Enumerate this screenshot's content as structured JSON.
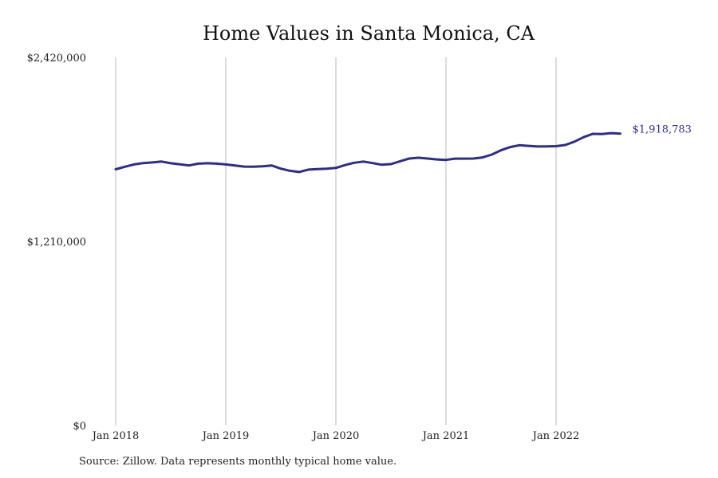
{
  "header": {
    "title": "Home Values in Santa Monica, CA"
  },
  "footer": {
    "source": "Source: Zillow. Data represents monthly typical home value."
  },
  "colors": {
    "line": "#2e2d8c",
    "gridline": "#b8b8b8",
    "text": "#222222",
    "last_label": "#2e2d8c"
  },
  "chart_data": {
    "type": "line",
    "title": "Home Values in Santa Monica, CA",
    "xlabel": "",
    "ylabel": "",
    "grid": "vertical gridlines at each January",
    "legend": "none",
    "x_ticks": [
      "Jan 2018",
      "Jan 2019",
      "Jan 2020",
      "Jan 2021",
      "Jan 2022"
    ],
    "y_ticks": [
      "$0",
      "$1,210,000",
      "$2,420,000"
    ],
    "y_tick_values": [
      0,
      1210000,
      2420000
    ],
    "ylim": [
      0,
      2420000
    ],
    "xlim": [
      "2018-01",
      "2022-12"
    ],
    "last_value_label": "$1,918,783",
    "series": [
      {
        "x": [
          "2018-01",
          "2018-02",
          "2018-03",
          "2018-04",
          "2018-05",
          "2018-06",
          "2018-07",
          "2018-08",
          "2018-09",
          "2018-10",
          "2018-11",
          "2018-12",
          "2019-01",
          "2019-02",
          "2019-03",
          "2019-04",
          "2019-05",
          "2019-06",
          "2019-07",
          "2019-08",
          "2019-09",
          "2019-10",
          "2019-11",
          "2019-12",
          "2020-01",
          "2020-02",
          "2020-03",
          "2020-04",
          "2020-05",
          "2020-06",
          "2020-07",
          "2020-08",
          "2020-09",
          "2020-10",
          "2020-11",
          "2020-12",
          "2021-01",
          "2021-02",
          "2021-03",
          "2021-04",
          "2021-05",
          "2021-06",
          "2021-07",
          "2021-08",
          "2021-09",
          "2021-10",
          "2021-11",
          "2021-12",
          "2022-01",
          "2022-02",
          "2022-03",
          "2022-04",
          "2022-05",
          "2022-06",
          "2022-07",
          "2022-08"
        ],
        "values": [
          1684000,
          1701000,
          1716000,
          1725000,
          1729000,
          1735000,
          1724000,
          1717000,
          1709000,
          1721000,
          1724000,
          1721000,
          1716000,
          1709000,
          1702000,
          1701000,
          1704000,
          1709000,
          1688000,
          1674000,
          1666000,
          1682000,
          1685000,
          1688000,
          1693000,
          1712000,
          1727000,
          1735000,
          1725000,
          1714000,
          1718000,
          1737000,
          1755000,
          1760000,
          1755000,
          1749000,
          1746000,
          1754000,
          1754000,
          1755000,
          1762000,
          1781000,
          1809000,
          1830000,
          1842000,
          1838000,
          1834000,
          1835000,
          1836000,
          1844000,
          1866000,
          1895000,
          1917000,
          1916000,
          1922000,
          1918783
        ]
      }
    ]
  }
}
